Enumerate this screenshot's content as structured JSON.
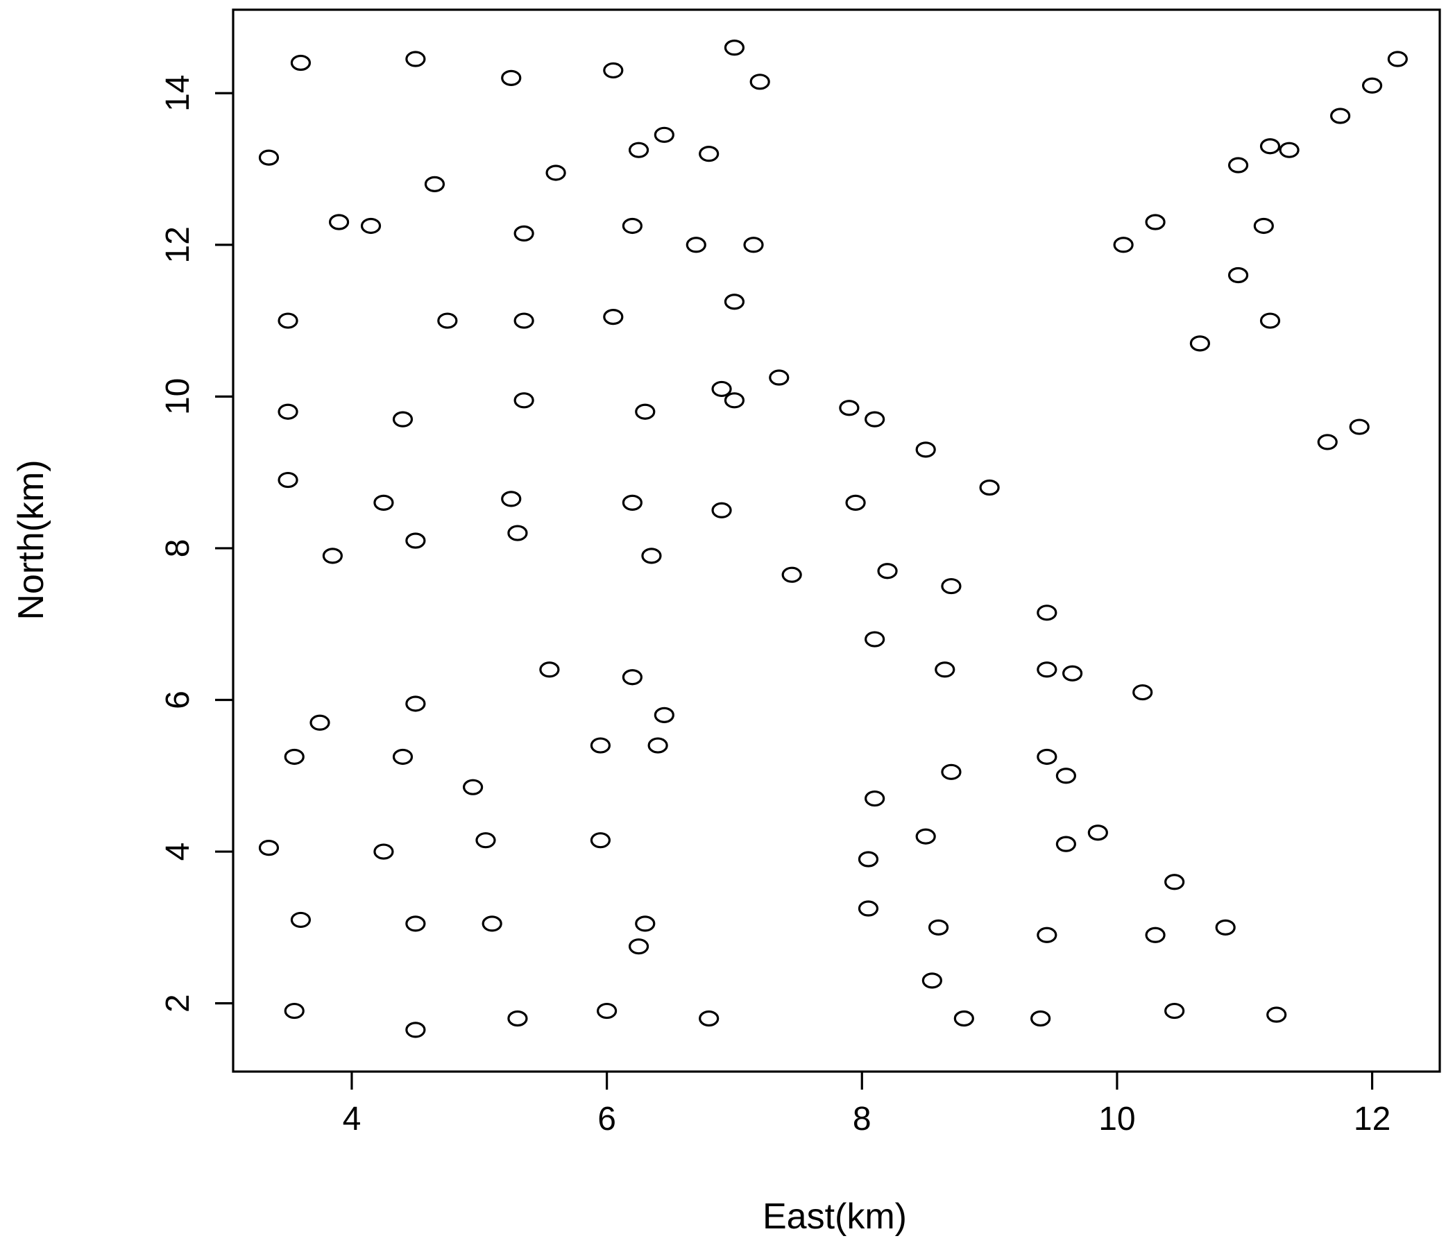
{
  "chart_data": {
    "type": "scatter",
    "title": "",
    "xlabel": "East(km)",
    "ylabel": "North(km)",
    "xlim": [
      3.07,
      12.53
    ],
    "ylim": [
      1.1,
      15.1
    ],
    "x_ticks": [
      4,
      6,
      8,
      10,
      12
    ],
    "y_ticks": [
      2,
      4,
      6,
      8,
      10,
      12,
      14
    ],
    "grid": false,
    "marker": "open-circle",
    "colors": {
      "point": "#000000",
      "axis": "#000000",
      "background": "#ffffff"
    },
    "series": [
      {
        "points": [
          [
            3.6,
            14.4
          ],
          [
            4.5,
            14.45
          ],
          [
            5.25,
            14.2
          ],
          [
            6.05,
            14.3
          ],
          [
            7.0,
            14.6
          ],
          [
            7.2,
            14.15
          ],
          [
            12.2,
            14.45
          ],
          [
            12.0,
            14.1
          ],
          [
            11.75,
            13.7
          ],
          [
            3.35,
            13.15
          ],
          [
            6.45,
            13.45
          ],
          [
            6.25,
            13.25
          ],
          [
            6.8,
            13.2
          ],
          [
            5.6,
            12.95
          ],
          [
            4.65,
            12.8
          ],
          [
            11.2,
            13.3
          ],
          [
            11.35,
            13.25
          ],
          [
            10.95,
            13.05
          ],
          [
            3.9,
            12.3
          ],
          [
            4.15,
            12.25
          ],
          [
            5.35,
            12.15
          ],
          [
            6.2,
            12.25
          ],
          [
            6.7,
            12.0
          ],
          [
            7.15,
            12.0
          ],
          [
            10.05,
            12.0
          ],
          [
            10.3,
            12.3
          ],
          [
            11.15,
            12.25
          ],
          [
            10.95,
            11.6
          ],
          [
            7.0,
            11.25
          ],
          [
            3.5,
            11.0
          ],
          [
            4.75,
            11.0
          ],
          [
            5.35,
            11.0
          ],
          [
            6.05,
            11.05
          ],
          [
            11.2,
            11.0
          ],
          [
            10.65,
            10.7
          ],
          [
            7.35,
            10.25
          ],
          [
            6.9,
            10.1
          ],
          [
            7.0,
            9.95
          ],
          [
            5.35,
            9.95
          ],
          [
            6.3,
            9.8
          ],
          [
            7.9,
            9.85
          ],
          [
            8.1,
            9.7
          ],
          [
            3.5,
            9.8
          ],
          [
            4.4,
            9.7
          ],
          [
            8.5,
            9.3
          ],
          [
            11.9,
            9.6
          ],
          [
            11.65,
            9.4
          ],
          [
            9.0,
            8.8
          ],
          [
            3.5,
            8.9
          ],
          [
            4.25,
            8.6
          ],
          [
            5.25,
            8.65
          ],
          [
            6.2,
            8.6
          ],
          [
            6.9,
            8.5
          ],
          [
            7.95,
            8.6
          ],
          [
            5.3,
            8.2
          ],
          [
            4.5,
            8.1
          ],
          [
            3.85,
            7.9
          ],
          [
            6.35,
            7.9
          ],
          [
            7.45,
            7.65
          ],
          [
            8.2,
            7.7
          ],
          [
            8.7,
            7.5
          ],
          [
            9.45,
            7.15
          ],
          [
            8.1,
            6.8
          ],
          [
            5.55,
            6.4
          ],
          [
            6.2,
            6.3
          ],
          [
            8.65,
            6.4
          ],
          [
            9.45,
            6.4
          ],
          [
            9.65,
            6.35
          ],
          [
            10.2,
            6.1
          ],
          [
            4.5,
            5.95
          ],
          [
            6.45,
            5.8
          ],
          [
            3.75,
            5.7
          ],
          [
            6.4,
            5.4
          ],
          [
            5.95,
            5.4
          ],
          [
            3.55,
            5.25
          ],
          [
            4.4,
            5.25
          ],
          [
            9.45,
            5.25
          ],
          [
            9.6,
            5.0
          ],
          [
            8.7,
            5.05
          ],
          [
            4.95,
            4.85
          ],
          [
            8.1,
            4.7
          ],
          [
            9.85,
            4.25
          ],
          [
            8.5,
            4.2
          ],
          [
            5.95,
            4.15
          ],
          [
            5.05,
            4.15
          ],
          [
            9.6,
            4.1
          ],
          [
            3.35,
            4.05
          ],
          [
            4.25,
            4.0
          ],
          [
            8.05,
            3.9
          ],
          [
            10.45,
            3.6
          ],
          [
            8.05,
            3.25
          ],
          [
            3.6,
            3.1
          ],
          [
            4.5,
            3.05
          ],
          [
            5.1,
            3.05
          ],
          [
            6.3,
            3.05
          ],
          [
            8.6,
            3.0
          ],
          [
            10.85,
            3.0
          ],
          [
            9.45,
            2.9
          ],
          [
            10.3,
            2.9
          ],
          [
            6.25,
            2.75
          ],
          [
            8.55,
            2.3
          ],
          [
            3.55,
            1.9
          ],
          [
            6.0,
            1.9
          ],
          [
            10.45,
            1.9
          ],
          [
            11.25,
            1.85
          ],
          [
            6.8,
            1.8
          ],
          [
            9.4,
            1.8
          ],
          [
            5.3,
            1.8
          ],
          [
            8.8,
            1.8
          ],
          [
            4.5,
            1.65
          ]
        ]
      }
    ]
  }
}
